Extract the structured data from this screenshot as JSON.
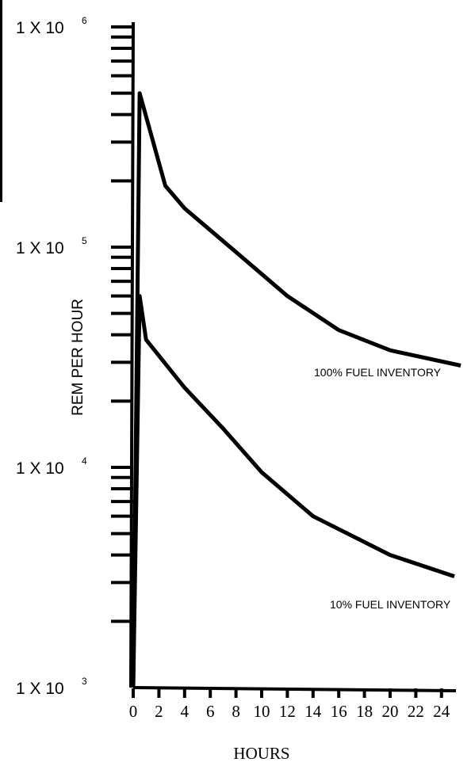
{
  "chart_data": {
    "type": "line",
    "xlabel": "HOURS",
    "ylabel": "REM PER HOUR",
    "x_ticks": [
      "0",
      "2",
      "4",
      "6",
      "8",
      "10",
      "12",
      "14",
      "16",
      "18",
      "20",
      "22",
      "24"
    ],
    "y_ticks": [
      {
        "value": 1000,
        "base": "1 X 10",
        "exp": "3"
      },
      {
        "value": 10000,
        "base": "1 X 10",
        "exp": "4"
      },
      {
        "value": 100000,
        "base": "1 X 10",
        "exp": "5"
      },
      {
        "value": 1000000,
        "base": "1 X 10",
        "exp": "6"
      }
    ],
    "y_scale": "log",
    "xlim": [
      0,
      25
    ],
    "ylim": [
      1000,
      1000000
    ],
    "series": [
      {
        "label": "100% FUEL INVENTORY",
        "x": [
          0,
          0.5,
          2.5,
          4,
          8,
          12,
          16,
          20,
          25.5
        ],
        "y": [
          1000,
          500000,
          190000,
          150000,
          95000,
          60000,
          42000,
          34000,
          29000
        ]
      },
      {
        "label": "10% FUEL INVENTORY",
        "x": [
          0,
          0.5,
          1,
          4,
          7,
          10,
          14,
          20,
          25
        ],
        "y": [
          1000,
          60000,
          38000,
          23000,
          15000,
          9500,
          6000,
          4000,
          3200
        ]
      }
    ]
  }
}
